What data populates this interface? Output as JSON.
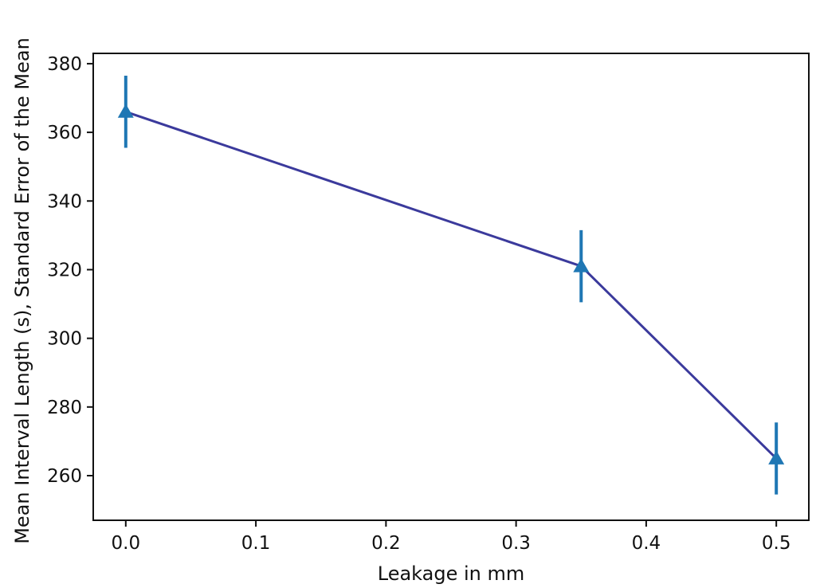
{
  "chart_data": {
    "type": "line",
    "title": "",
    "xlabel": "Leakage in mm",
    "ylabel": "Mean Interval Length (s), Standard Error of the Mean",
    "xlim": [
      -0.025,
      0.525
    ],
    "ylim": [
      247,
      383
    ],
    "x_ticks": [
      0.0,
      0.1,
      0.2,
      0.3,
      0.4,
      0.5
    ],
    "x_tick_labels": [
      "0.0",
      "0.1",
      "0.2",
      "0.3",
      "0.4",
      "0.5"
    ],
    "y_ticks": [
      260,
      280,
      300,
      320,
      340,
      360,
      380
    ],
    "y_tick_labels": [
      "260",
      "280",
      "300",
      "320",
      "340",
      "360",
      "380"
    ],
    "grid": false,
    "legend": "none",
    "series": [
      {
        "x": [
          0.0,
          0.35,
          0.5
        ],
        "y": [
          366,
          321,
          265
        ],
        "error": [
          10.5,
          10.5,
          10.5
        ],
        "marker": "triangle-up",
        "line_color": "#3b3a9c",
        "marker_color": "#1f77b4",
        "errorbar_color": "#1f77b4"
      }
    ]
  }
}
